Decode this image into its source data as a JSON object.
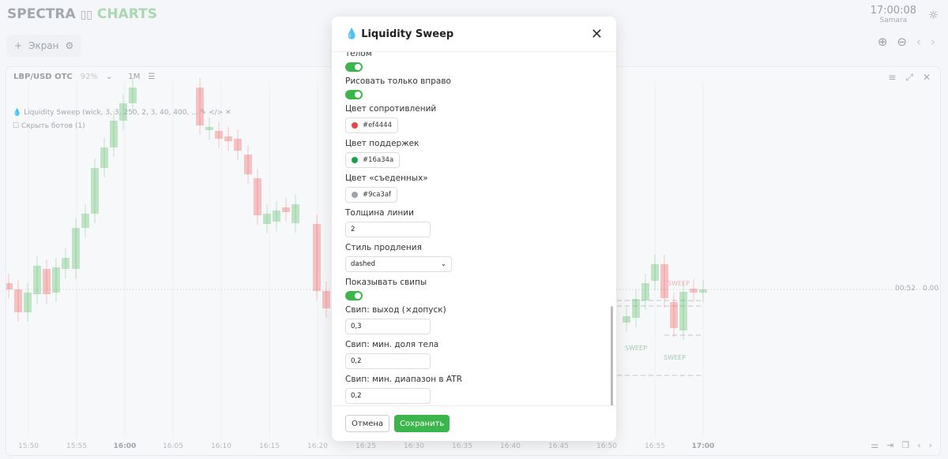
{
  "app": {
    "logo_left": "SPECTRA",
    "logo_right": "CHARTS",
    "clock": "17:00:08",
    "timezone": "Samara"
  },
  "toolbar": {
    "screen_label": "Экран"
  },
  "chart": {
    "symbol": "LBP/USD OTC",
    "payout": "92%",
    "timeframe": "1M",
    "indicator_legend": "Liquidity Sweep (wick, 3, 3, 250, 2, 3, 40, 400, ...",
    "hide_bots": "Скрыть ботов (1)",
    "time_labels": [
      "15:50",
      "15:55",
      "16:00",
      "16:05",
      "16:10",
      "16:15",
      "16:20",
      "16:25",
      "16:30",
      "16:35",
      "16:40",
      "16:45",
      "16:50",
      "16:55",
      "17:00"
    ],
    "countdown": "00:52",
    "price": "0.00",
    "sweep_label": "SWEEP",
    "colors": {
      "up": "#3cb54c",
      "down": "#ef4444"
    }
  },
  "modal": {
    "title": "Liquidity Sweep",
    "fields": {
      "body_label": "телом",
      "draw_right_label": "Рисовать только вправо",
      "res_color_label": "Цвет сопротивлений",
      "res_color": "#ef4444",
      "sup_color_label": "Цвет поддержек",
      "sup_color": "#16a34a",
      "eaten_color_label": "Цвет «съеденных»",
      "eaten_color": "#9ca3af",
      "line_width_label": "Толщина линии",
      "line_width": "2",
      "ext_style_label": "Стиль продления",
      "ext_style": "dashed",
      "show_sweeps_label": "Показывать свипы",
      "sweep_exit_label": "Свип: выход (×допуск)",
      "sweep_exit": "0,3",
      "sweep_body_label": "Свип: мин. доля тела",
      "sweep_body": "0,2",
      "sweep_range_label": "Свип: мин. диапазон в ATR",
      "sweep_range": "0,2"
    },
    "toggles": {
      "body": true,
      "draw_right": true,
      "show_sweeps": true
    },
    "cancel_label": "Отмена",
    "save_label": "Сохранить"
  }
}
